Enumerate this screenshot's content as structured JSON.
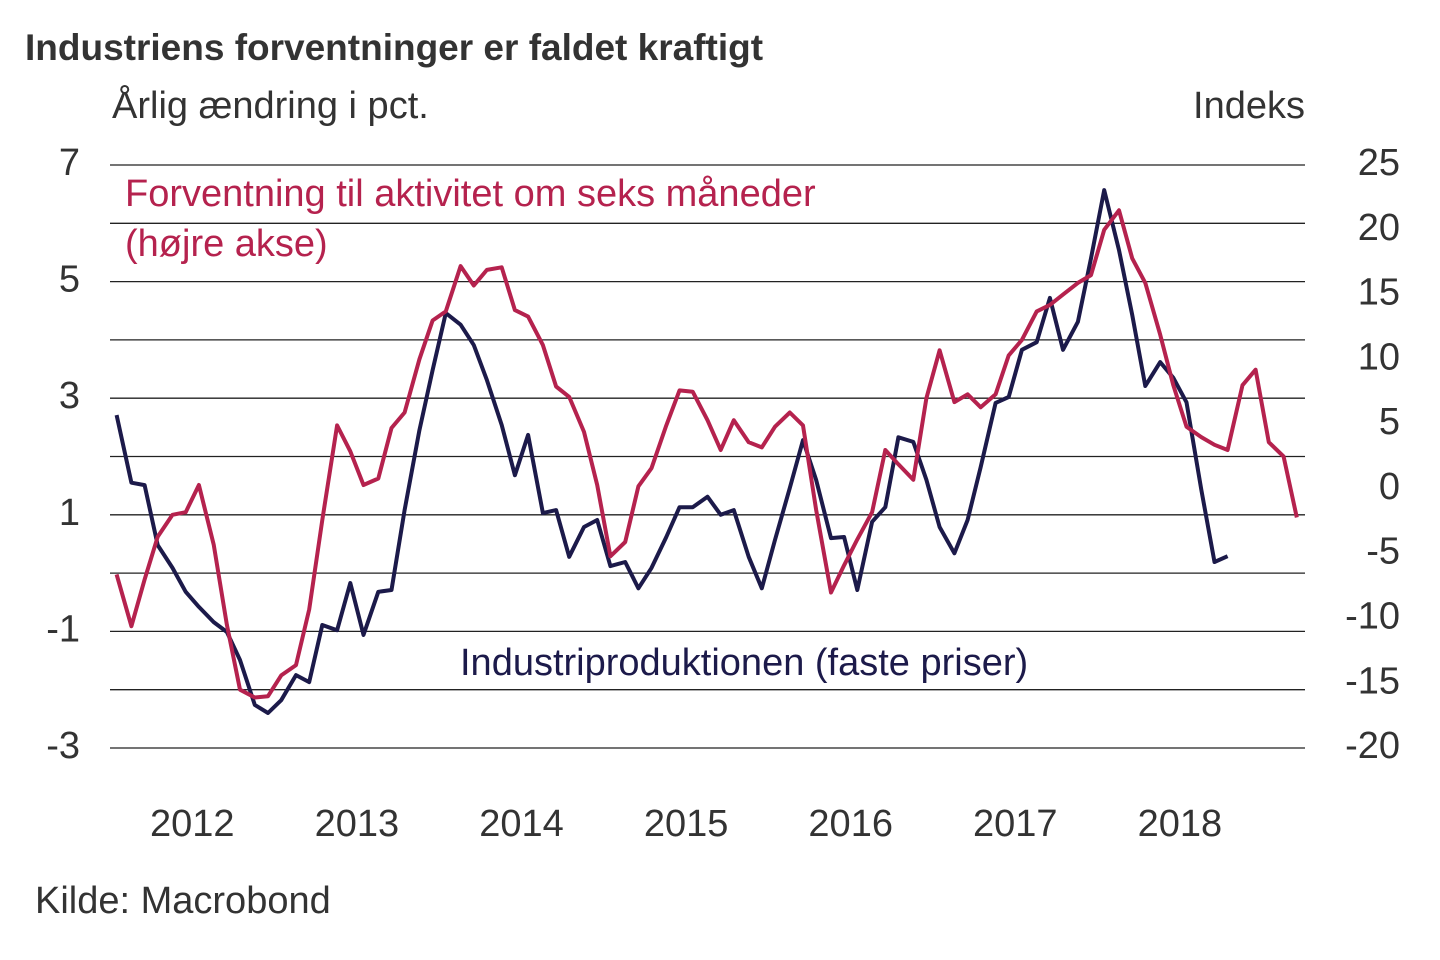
{
  "chart_data": {
    "type": "line",
    "title": "Industriens forventninger er faldet kraftigt",
    "y_label": "Årlig ændring i pct.",
    "y2_label": "Indeks",
    "source": "Kilde: Macrobond",
    "annotation": "(højre akse)",
    "x": [
      2012.04,
      2012.13,
      2012.21,
      2012.29,
      2012.38,
      2012.46,
      2012.54,
      2012.63,
      2012.71,
      2012.79,
      2012.88,
      2012.96,
      2013.04,
      2013.13,
      2013.21,
      2013.29,
      2013.38,
      2013.46,
      2013.54,
      2013.63,
      2013.71,
      2013.79,
      2013.88,
      2013.96,
      2014.04,
      2014.13,
      2014.21,
      2014.29,
      2014.38,
      2014.46,
      2014.54,
      2014.63,
      2014.71,
      2014.79,
      2014.88,
      2014.96,
      2015.04,
      2015.13,
      2015.21,
      2015.29,
      2015.38,
      2015.46,
      2015.54,
      2015.63,
      2015.71,
      2015.79,
      2015.88,
      2015.96,
      2016.04,
      2016.13,
      2016.21,
      2016.29,
      2016.38,
      2016.46,
      2016.54,
      2016.63,
      2016.71,
      2016.79,
      2016.88,
      2016.96,
      2017.04,
      2017.13,
      2017.21,
      2017.29,
      2017.38,
      2017.46,
      2017.54,
      2017.63,
      2017.71,
      2017.79,
      2017.88,
      2017.96,
      2018.04,
      2018.13,
      2018.21,
      2018.29,
      2018.38,
      2018.46,
      2018.54,
      2018.63,
      2018.71,
      2018.79,
      2018.88,
      2018.96,
      2019.04,
      2019.13,
      2019.21
    ],
    "series": [
      {
        "name": "Industriproduktionen (faste priser)",
        "color": "#1c1a4a",
        "values": [
          2.71,
          1.55,
          1.51,
          0.48,
          0.09,
          -0.32,
          -0.58,
          -0.84,
          -1.01,
          -1.49,
          -2.26,
          -2.4,
          -2.18,
          -1.75,
          -1.87,
          -0.89,
          -0.98,
          -0.17,
          -1.06,
          -0.32,
          -0.29,
          1.08,
          2.45,
          3.48,
          4.46,
          4.26,
          3.91,
          3.31,
          2.54,
          1.68,
          2.37,
          1.03,
          1.08,
          0.28,
          0.79,
          0.91,
          0.12,
          0.19,
          -0.26,
          0.09,
          0.62,
          1.13,
          1.13,
          1.31,
          1.0,
          1.08,
          0.28,
          -0.26,
          0.57,
          1.46,
          2.28,
          1.6,
          0.6,
          0.62,
          -0.29,
          0.88,
          1.13,
          2.33,
          2.25,
          1.6,
          0.79,
          0.34,
          0.91,
          1.82,
          2.92,
          3.02,
          3.83,
          3.96,
          4.72,
          3.83,
          4.31,
          5.4,
          6.57,
          5.54,
          4.43,
          3.21,
          3.62,
          3.35,
          2.93,
          1.43,
          0.19,
          0.29,
          null,
          null,
          null,
          null,
          null
        ]
      },
      {
        "name": "Forventning til aktivitet om seks måneder",
        "color": "#b5224e",
        "axis": "y2",
        "values": [
          -6.6,
          -10.6,
          -7.0,
          -3.7,
          -2.0,
          -1.8,
          0.3,
          -4.3,
          -10.5,
          -15.5,
          -16.1,
          -16.0,
          -14.4,
          -13.6,
          -9.3,
          -2.4,
          4.9,
          2.9,
          0.3,
          0.8,
          4.7,
          5.9,
          10.0,
          13.0,
          13.7,
          17.2,
          15.7,
          16.9,
          17.1,
          13.8,
          13.3,
          11.1,
          7.9,
          7.1,
          4.4,
          0.3,
          -5.2,
          -4.1,
          0.2,
          1.6,
          4.9,
          7.6,
          7.5,
          5.3,
          3.0,
          5.3,
          3.6,
          3.2,
          4.8,
          5.9,
          4.9,
          -1.6,
          -8.0,
          -5.9,
          -3.9,
          -1.8,
          3.0,
          1.9,
          0.7,
          7.0,
          10.7,
          6.7,
          7.3,
          6.3,
          7.3,
          10.3,
          11.5,
          13.7,
          14.2,
          15.0,
          15.9,
          16.5,
          20.0,
          21.5,
          17.8,
          15.9,
          11.9,
          8.0,
          4.8,
          4.0,
          3.4,
          3.0,
          8.0,
          9.2,
          3.6,
          2.5,
          -2.2
        ]
      }
    ],
    "xlim": [
      2012,
      2019.26
    ],
    "xticks": [
      {
        "value": 2012.5,
        "label": "2012"
      },
      {
        "value": 2013.5,
        "label": "2013"
      },
      {
        "value": 2014.5,
        "label": "2014"
      },
      {
        "value": 2015.5,
        "label": "2015"
      },
      {
        "value": 2016.5,
        "label": "2016"
      },
      {
        "value": 2017.5,
        "label": "2017"
      },
      {
        "value": 2018.5,
        "label": "2018"
      }
    ],
    "ylim": [
      -3,
      7
    ],
    "yticks": [
      -3,
      -1,
      1,
      3,
      5,
      7
    ],
    "grid_values": [
      -3,
      -2,
      -1,
      0,
      1,
      2,
      3,
      4,
      5,
      6,
      7
    ],
    "y2lim": [
      -20,
      25
    ],
    "y2ticks": [
      -20,
      -15,
      -10,
      -5,
      0,
      5,
      10,
      15,
      20,
      25
    ],
    "grid": true
  }
}
